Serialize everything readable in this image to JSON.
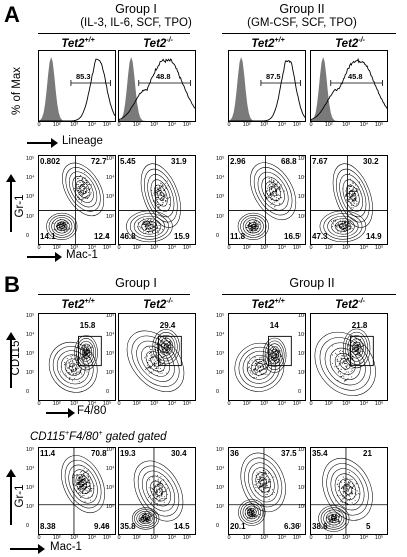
{
  "panels": {
    "A": {
      "letter": "A",
      "group1": {
        "title": "Group I",
        "subtitle": "(IL-3, IL-6, SCF, TPO)"
      },
      "group2": {
        "title": "Group II",
        "subtitle": "(GM-CSF, SCF, TPO)"
      },
      "genotypes": [
        "Tet2",
        "+/+",
        "Tet2",
        "-/-",
        "Tet2",
        "+/+",
        "Tet2",
        "-/-"
      ],
      "hist_ylabel": "% of Max",
      "hist_xlabel": "Lineage",
      "hist_values": [
        "85.3",
        "48.8",
        "87.5",
        "45.8"
      ],
      "contour_ylabel": "Gr-1",
      "contour_xlabel": "Mac-1",
      "quadrants": [
        {
          "ul": "0.802",
          "ur": "72.7",
          "ll": "14.1",
          "lr": "12.4"
        },
        {
          "ul": "5.45",
          "ur": "31.9",
          "ll": "46.8",
          "lr": "15.9"
        },
        {
          "ul": "2.96",
          "ur": "68.8",
          "ll": "11.8",
          "lr": "16.5"
        },
        {
          "ul": "7.67",
          "ur": "30.2",
          "ll": "47.3",
          "lr": "14.9"
        }
      ]
    },
    "B": {
      "letter": "B",
      "group1": {
        "title": "Group I"
      },
      "group2": {
        "title": "Group II"
      },
      "genotypes": [
        "Tet2",
        "+/+",
        "Tet2",
        "-/-",
        "Tet2",
        "+/+",
        "Tet2",
        "-/-"
      ],
      "f480_ylabel": "CD115",
      "f480_xlabel": "F4/80",
      "gate_values": [
        "15.8",
        "29.4",
        "14",
        "21.8"
      ],
      "gated_header": {
        "a": "CD115",
        "b": "+",
        "c": "F4/80",
        "d": "+",
        "e": " gated gated"
      },
      "contour_ylabel": "Gr-1",
      "contour_xlabel": "Mac-1",
      "quadrants": [
        {
          "ul": "11.4",
          "ur": "70.8",
          "ll": "8.38",
          "lr": "9.46"
        },
        {
          "ul": "19.3",
          "ur": "30.4",
          "ll": "35.8",
          "lr": "14.5"
        },
        {
          "ul": "36",
          "ur": "37.5",
          "ll": "20.1",
          "lr": "6.36"
        },
        {
          "ul": "35.4",
          "ur": "21",
          "ll": "38.6",
          "lr": "5"
        }
      ]
    }
  },
  "ticks": {
    "x": [
      "0",
      "10²",
      "10³",
      "10⁴",
      "10⁵"
    ],
    "y": [
      "10⁵",
      "10⁴",
      "10³",
      "10²",
      "0"
    ]
  }
}
